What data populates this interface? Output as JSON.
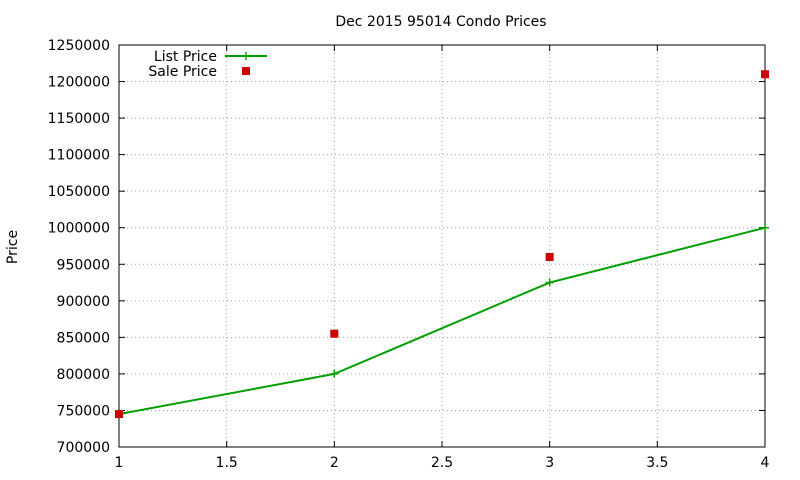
{
  "chart_data": {
    "type": "line",
    "title": "Dec 2015 95014 Condo Prices",
    "xlabel": "",
    "ylabel": "Price",
    "xlim": [
      1,
      4
    ],
    "ylim": [
      700000,
      1250000
    ],
    "x_ticks": [
      1,
      1.5,
      2,
      2.5,
      3,
      3.5,
      4
    ],
    "x_tick_labels": [
      "1",
      "1.5",
      "2",
      "2.5",
      "3",
      "3.5",
      "4"
    ],
    "y_ticks": [
      700000,
      750000,
      800000,
      850000,
      900000,
      950000,
      1000000,
      1050000,
      1100000,
      1150000,
      1200000,
      1250000
    ],
    "y_tick_labels": [
      "700000",
      "750000",
      "800000",
      "850000",
      "900000",
      "950000",
      "1000000",
      "1050000",
      "1100000",
      "1150000",
      "1200000",
      "1250000"
    ],
    "grid": true,
    "legend_position": "top-left",
    "series": [
      {
        "name": "List Price",
        "style": "linespoints",
        "color": "#00a000",
        "x": [
          1,
          2,
          3,
          4
        ],
        "y": [
          745000,
          800000,
          925000,
          1000000
        ]
      },
      {
        "name": "Sale Price",
        "style": "points",
        "color": "#cc0000",
        "x": [
          1,
          2,
          3,
          4
        ],
        "y": [
          745000,
          855000,
          960000,
          1210000
        ]
      }
    ]
  }
}
